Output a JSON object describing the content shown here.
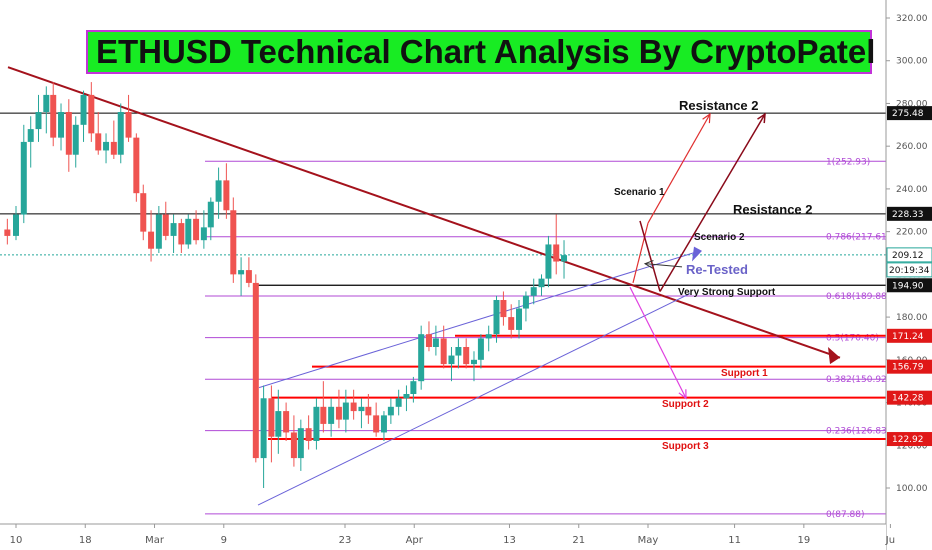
{
  "chart_data": {
    "type": "candlestick",
    "title": "ETHUSD Technical Chart Analysis By CryptoPatel",
    "y_axis": {
      "min": 84,
      "max": 326,
      "ticks": [
        100,
        120,
        140,
        160,
        180,
        200,
        220,
        240,
        260,
        280,
        300,
        320
      ],
      "tick_labels": [
        "100.00",
        "120.00",
        "140.00",
        "160.00",
        "180.00",
        "200.00",
        "220.00",
        "240.00",
        "260.00",
        "280.00",
        "300.00",
        "320.00"
      ]
    },
    "x_axis": {
      "labels": [
        "10",
        "18",
        "Mar",
        "9",
        "23",
        "Apr",
        "13",
        "21",
        "May",
        "11",
        "19",
        "Ju"
      ],
      "positions_day": [
        0,
        8,
        16,
        24,
        38,
        46,
        57,
        65,
        73,
        83,
        91,
        101
      ]
    },
    "candles": [
      {
        "d": -1,
        "o": 221,
        "h": 226,
        "l": 214,
        "c": 218
      },
      {
        "d": 0,
        "o": 218,
        "h": 232,
        "l": 216,
        "c": 228
      },
      {
        "d": 0.9,
        "o": 228,
        "h": 270,
        "l": 224,
        "c": 262
      },
      {
        "d": 1.7,
        "o": 262,
        "h": 274,
        "l": 250,
        "c": 268
      },
      {
        "d": 2.6,
        "o": 268,
        "h": 284,
        "l": 262,
        "c": 276
      },
      {
        "d": 3.5,
        "o": 276,
        "h": 288,
        "l": 266,
        "c": 284
      },
      {
        "d": 4.3,
        "o": 284,
        "h": 290,
        "l": 260,
        "c": 264
      },
      {
        "d": 5.2,
        "o": 264,
        "h": 280,
        "l": 258,
        "c": 276
      },
      {
        "d": 6.1,
        "o": 276,
        "h": 282,
        "l": 248,
        "c": 256
      },
      {
        "d": 6.9,
        "o": 256,
        "h": 274,
        "l": 250,
        "c": 270
      },
      {
        "d": 7.8,
        "o": 270,
        "h": 286,
        "l": 262,
        "c": 284
      },
      {
        "d": 8.7,
        "o": 284,
        "h": 290,
        "l": 262,
        "c": 266
      },
      {
        "d": 9.5,
        "o": 266,
        "h": 276,
        "l": 256,
        "c": 258
      },
      {
        "d": 10.4,
        "o": 258,
        "h": 266,
        "l": 252,
        "c": 262
      },
      {
        "d": 11.3,
        "o": 262,
        "h": 272,
        "l": 254,
        "c": 256
      },
      {
        "d": 12.1,
        "o": 256,
        "h": 280,
        "l": 252,
        "c": 276
      },
      {
        "d": 13.0,
        "o": 276,
        "h": 284,
        "l": 262,
        "c": 264
      },
      {
        "d": 13.9,
        "o": 264,
        "h": 266,
        "l": 234,
        "c": 238
      },
      {
        "d": 14.7,
        "o": 238,
        "h": 242,
        "l": 216,
        "c": 220
      },
      {
        "d": 15.6,
        "o": 220,
        "h": 230,
        "l": 206,
        "c": 212
      },
      {
        "d": 16.5,
        "o": 212,
        "h": 232,
        "l": 210,
        "c": 228
      },
      {
        "d": 17.3,
        "o": 228,
        "h": 234,
        "l": 216,
        "c": 218
      },
      {
        "d": 18.2,
        "o": 218,
        "h": 228,
        "l": 210,
        "c": 224
      },
      {
        "d": 19.1,
        "o": 224,
        "h": 226,
        "l": 210,
        "c": 214
      },
      {
        "d": 19.9,
        "o": 214,
        "h": 228,
        "l": 212,
        "c": 226
      },
      {
        "d": 20.8,
        "o": 226,
        "h": 230,
        "l": 214,
        "c": 216
      },
      {
        "d": 21.7,
        "o": 216,
        "h": 230,
        "l": 212,
        "c": 222
      },
      {
        "d": 22.5,
        "o": 222,
        "h": 236,
        "l": 216,
        "c": 234
      },
      {
        "d": 23.4,
        "o": 234,
        "h": 250,
        "l": 226,
        "c": 244
      },
      {
        "d": 24.3,
        "o": 244,
        "h": 252,
        "l": 226,
        "c": 230
      },
      {
        "d": 25.1,
        "o": 230,
        "h": 236,
        "l": 196,
        "c": 200
      },
      {
        "d": 26.0,
        "o": 200,
        "h": 208,
        "l": 190,
        "c": 202
      },
      {
        "d": 26.9,
        "o": 202,
        "h": 208,
        "l": 194,
        "c": 196
      },
      {
        "d": 27.7,
        "o": 196,
        "h": 200,
        "l": 112,
        "c": 114
      },
      {
        "d": 28.6,
        "o": 114,
        "h": 148,
        "l": 100,
        "c": 142
      },
      {
        "d": 29.5,
        "o": 142,
        "h": 148,
        "l": 112,
        "c": 124
      },
      {
        "d": 30.3,
        "o": 124,
        "h": 146,
        "l": 116,
        "c": 136
      },
      {
        "d": 31.2,
        "o": 136,
        "h": 140,
        "l": 122,
        "c": 126
      },
      {
        "d": 32.1,
        "o": 126,
        "h": 134,
        "l": 110,
        "c": 114
      },
      {
        "d": 32.9,
        "o": 114,
        "h": 132,
        "l": 108,
        "c": 128
      },
      {
        "d": 33.8,
        "o": 128,
        "h": 134,
        "l": 118,
        "c": 122
      },
      {
        "d": 34.7,
        "o": 122,
        "h": 142,
        "l": 118,
        "c": 138
      },
      {
        "d": 35.5,
        "o": 138,
        "h": 150,
        "l": 126,
        "c": 130
      },
      {
        "d": 36.4,
        "o": 130,
        "h": 142,
        "l": 124,
        "c": 138
      },
      {
        "d": 37.3,
        "o": 138,
        "h": 146,
        "l": 128,
        "c": 132
      },
      {
        "d": 38.1,
        "o": 132,
        "h": 146,
        "l": 126,
        "c": 140
      },
      {
        "d": 39.0,
        "o": 140,
        "h": 146,
        "l": 132,
        "c": 136
      },
      {
        "d": 39.9,
        "o": 136,
        "h": 142,
        "l": 128,
        "c": 138
      },
      {
        "d": 40.7,
        "o": 138,
        "h": 144,
        "l": 130,
        "c": 134
      },
      {
        "d": 41.6,
        "o": 134,
        "h": 140,
        "l": 124,
        "c": 126
      },
      {
        "d": 42.5,
        "o": 126,
        "h": 136,
        "l": 122,
        "c": 134
      },
      {
        "d": 43.3,
        "o": 134,
        "h": 142,
        "l": 130,
        "c": 138
      },
      {
        "d": 44.2,
        "o": 138,
        "h": 146,
        "l": 134,
        "c": 142
      },
      {
        "d": 45.1,
        "o": 142,
        "h": 148,
        "l": 136,
        "c": 144
      },
      {
        "d": 45.9,
        "o": 144,
        "h": 152,
        "l": 140,
        "c": 150
      },
      {
        "d": 46.8,
        "o": 150,
        "h": 176,
        "l": 146,
        "c": 172
      },
      {
        "d": 47.7,
        "o": 172,
        "h": 178,
        "l": 164,
        "c": 166
      },
      {
        "d": 48.5,
        "o": 166,
        "h": 176,
        "l": 162,
        "c": 170
      },
      {
        "d": 49.4,
        "o": 170,
        "h": 176,
        "l": 156,
        "c": 158
      },
      {
        "d": 50.3,
        "o": 158,
        "h": 166,
        "l": 150,
        "c": 162
      },
      {
        "d": 51.1,
        "o": 162,
        "h": 170,
        "l": 156,
        "c": 166
      },
      {
        "d": 52.0,
        "o": 166,
        "h": 170,
        "l": 156,
        "c": 158
      },
      {
        "d": 52.9,
        "o": 158,
        "h": 164,
        "l": 150,
        "c": 160
      },
      {
        "d": 53.7,
        "o": 160,
        "h": 172,
        "l": 156,
        "c": 170
      },
      {
        "d": 54.6,
        "o": 170,
        "h": 176,
        "l": 164,
        "c": 172
      },
      {
        "d": 55.5,
        "o": 172,
        "h": 190,
        "l": 168,
        "c": 188
      },
      {
        "d": 56.3,
        "o": 188,
        "h": 192,
        "l": 176,
        "c": 180
      },
      {
        "d": 57.2,
        "o": 180,
        "h": 186,
        "l": 170,
        "c": 174
      },
      {
        "d": 58.1,
        "o": 174,
        "h": 188,
        "l": 170,
        "c": 184
      },
      {
        "d": 58.9,
        "o": 184,
        "h": 192,
        "l": 178,
        "c": 190
      },
      {
        "d": 59.8,
        "o": 190,
        "h": 198,
        "l": 186,
        "c": 194
      },
      {
        "d": 60.7,
        "o": 194,
        "h": 200,
        "l": 190,
        "c": 198
      },
      {
        "d": 61.5,
        "o": 198,
        "h": 218,
        "l": 194,
        "c": 214
      },
      {
        "d": 62.4,
        "o": 214,
        "h": 228,
        "l": 200,
        "c": 206
      },
      {
        "d": 63.3,
        "o": 206,
        "h": 216,
        "l": 198,
        "c": 209
      }
    ],
    "horizontal_levels": [
      {
        "value": 275.48,
        "label": "275.48",
        "tag": "black"
      },
      {
        "value": 228.33,
        "label": "228.33",
        "tag": "black"
      },
      {
        "value": 209.12,
        "label": "209.12",
        "tag": "teal"
      },
      {
        "value": 194.9,
        "label": "194.90",
        "tag": "black"
      },
      {
        "value": 171.24,
        "label": "171.24",
        "tag": "red"
      },
      {
        "value": 156.79,
        "label": "156.79",
        "tag": "red"
      },
      {
        "value": 142.28,
        "label": "142.28",
        "tag": "red"
      },
      {
        "value": 122.92,
        "label": "122.92",
        "tag": "red"
      }
    ],
    "countdown_label": "20:19:34",
    "fibonacci": [
      {
        "value": 252.93,
        "label": "1(252.93)"
      },
      {
        "value": 217.61,
        "label": "0.786(217.61)"
      },
      {
        "value": 189.88,
        "label": "0.618(189.88)"
      },
      {
        "value": 170.4,
        "label": "0.5(170.40)"
      },
      {
        "value": 150.92,
        "label": "0.382(150.92)"
      },
      {
        "value": 126.83,
        "label": "0.236(126.83)"
      },
      {
        "value": 87.88,
        "label": "0(87.88)"
      }
    ],
    "annotations": {
      "resistance_2_top": "Resistance 2",
      "resistance_2_mid": "Resistance 2",
      "scenario_1": "Scenario 1",
      "scenario_2": "Scenario 2",
      "re_tested": "Re-Tested",
      "very_strong_support": "Very Strong Support",
      "support_1": "Support 1",
      "support_2": "Support 2",
      "support_3": "Support 3"
    },
    "colors": {
      "up": "#26a69a",
      "down": "#ef5350",
      "fib": "#b04ad6",
      "trendline": "#a4121c",
      "channel": "#6a62d8",
      "support": "#ff0000",
      "banner_bg": "#18ec23",
      "banner_border": "#c232d8"
    }
  }
}
